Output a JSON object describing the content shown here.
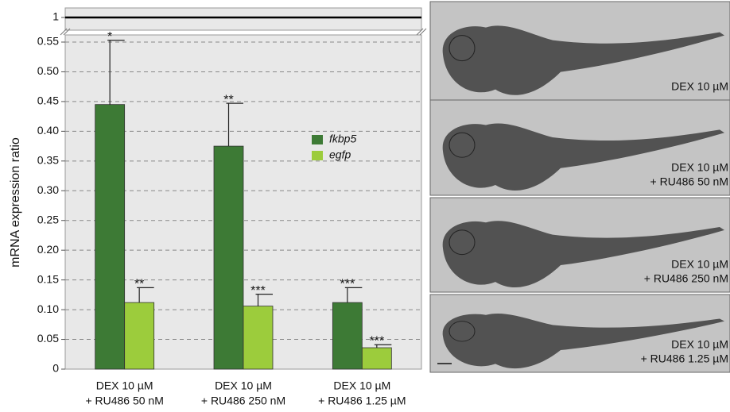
{
  "chart_data": {
    "type": "bar",
    "y_label": "mRNA expression ratio",
    "categories": [
      [
        "DEX 10 µM",
        "+ RU486 50 nM"
      ],
      [
        "DEX 10 µM",
        "+ RU486 250 nM"
      ],
      [
        "DEX 10 µM",
        "+ RU486 1.25 µM"
      ]
    ],
    "series": [
      {
        "name": "fkbp5",
        "color": "#3d7a35",
        "values": [
          0.445,
          0.375,
          0.112
        ],
        "errors": [
          0.108,
          0.072,
          0.025
        ],
        "labels": [
          "*",
          "**",
          "***"
        ]
      },
      {
        "name": "egfp",
        "color": "#9ccc3c",
        "values": [
          0.112,
          0.106,
          0.036
        ],
        "errors": [
          0.025,
          0.02,
          0.005
        ],
        "labels": [
          "**",
          "***",
          "***"
        ]
      }
    ],
    "ylim": [
      0,
      0.55
    ],
    "yticks": [
      0,
      0.05,
      {
        "value": 0.1,
        "label": "0.10"
      },
      0.15,
      {
        "value": 0.2,
        "label": "0.20"
      },
      0.25,
      {
        "value": 0.3,
        "label": "0.30"
      },
      0.35,
      {
        "value": 0.4,
        "label": "0.40"
      },
      0.45,
      {
        "value": 0.5,
        "label": "0.50"
      },
      0.55
    ],
    "upper_yticks": [
      1
    ],
    "grid": true
  },
  "images": [
    {
      "label": [
        "DEX 10 µM"
      ]
    },
    {
      "label": [
        "DEX 10 µM",
        "+ RU486 50 nM"
      ]
    },
    {
      "label": [
        "DEX 10 µM",
        "+ RU486 250 nM"
      ]
    },
    {
      "label": [
        "DEX 10 µM",
        "+ RU486 1.25 µM"
      ]
    }
  ]
}
